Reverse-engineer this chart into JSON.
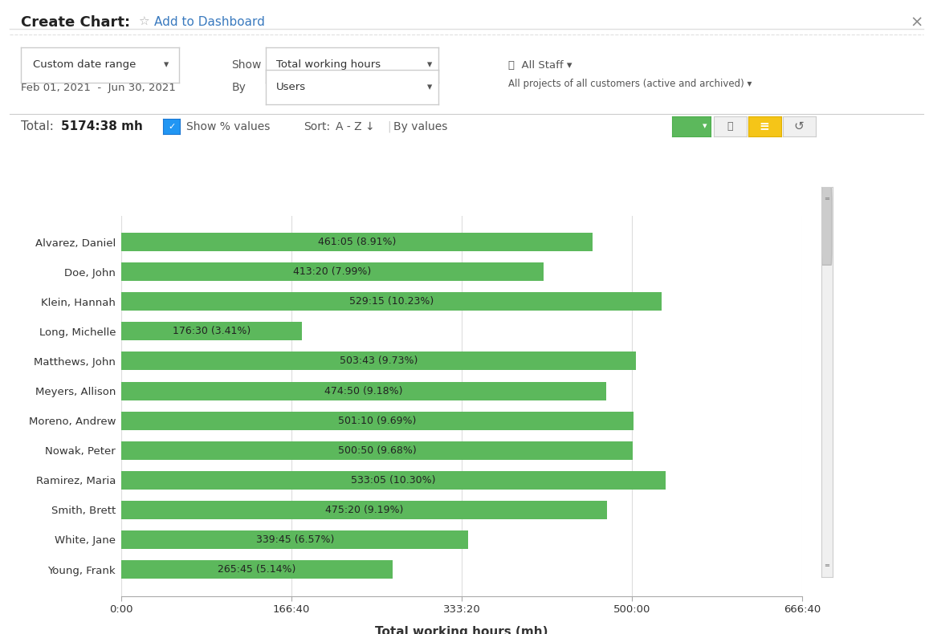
{
  "title": "Total working hours (mh)",
  "people": [
    "Alvarez, Daniel",
    "Doe, John",
    "Klein, Hannah",
    "Long, Michelle",
    "Matthews, John",
    "Meyers, Allison",
    "Moreno, Andrew",
    "Nowak, Peter",
    "Ramirez, Maria",
    "Smith, Brett",
    "White, Jane",
    "Young, Frank"
  ],
  "values_minutes": [
    27665,
    24800,
    31755,
    10590,
    30223,
    28490,
    30070,
    30050,
    31985,
    28520,
    20385,
    15945
  ],
  "labels": [
    "461:05 (8.91%)",
    "413:20 (7.99%)",
    "529:15 (10.23%)",
    "176:30 (3.41%)",
    "503:43 (9.73%)",
    "474:50 (9.18%)",
    "501:10 (9.69%)",
    "500:50 (9.68%)",
    "533:05 (10.30%)",
    "475:20 (9.19%)",
    "339:45 (6.57%)",
    "265:45 (5.14%)"
  ],
  "bar_color": "#5cb85c",
  "background_color": "#ffffff",
  "grid_color": "#dddddd",
  "text_color": "#333333",
  "xlabel": "Total working hours (mh)",
  "xtick_labels": [
    "0:00",
    "166:40",
    "333:20",
    "500:00",
    "666:40"
  ],
  "xtick_values": [
    0,
    10000,
    20000,
    30000,
    40000
  ],
  "xlim": [
    0,
    40000
  ],
  "header_bg": "#f8f8f8",
  "total_label": "Total:",
  "total_value": "5174:38 mh",
  "date_range": "Feb 01, 2021  -  Jun 30, 2021",
  "show_label": "Show",
  "show_value": "Total working hours",
  "by_label": "By",
  "by_value": "Users",
  "date_range_dropdown": "Custom date range",
  "sort_label": "Sort:",
  "sort_value": "A - Z",
  "by_values_label": "By values",
  "create_chart_label": "Create Chart:",
  "add_dashboard_label": "Add to Dashboard",
  "all_staff_label": "All Staff",
  "all_projects_label": "All projects of all customers (active and archived)"
}
